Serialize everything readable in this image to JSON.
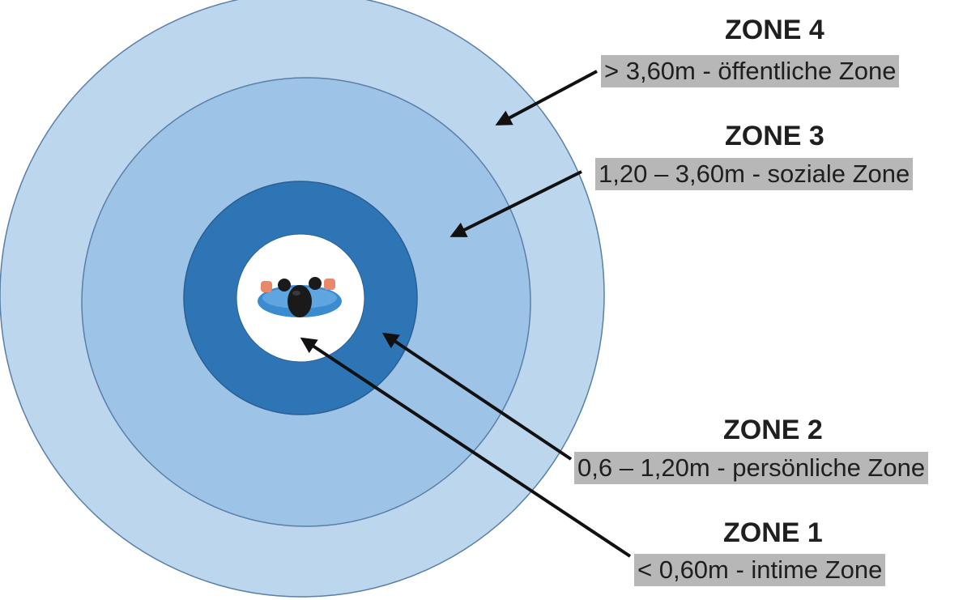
{
  "zones": [
    {
      "title": "ZONE 4",
      "description": "> 3,60m - öffentliche Zone"
    },
    {
      "title": "ZONE 3",
      "description": "1,20 – 3,60m - soziale Zone"
    },
    {
      "title": "ZONE 2",
      "description": "0,6 – 1,20m - persönliche Zone"
    },
    {
      "title": "ZONE 1",
      "description": "< 0,60m - intime Zone"
    }
  ],
  "colors": {
    "zone4_fill": "#bcd6ee",
    "zone3_fill": "#9dc3e6",
    "zone2_fill": "#2e75b6",
    "zone1_fill": "#ffffff",
    "ring_stroke": "#5a7fa8",
    "arrow": "#111111",
    "label_background": "#b7b7b7",
    "person_body": "#3b8bd0",
    "person_head": "#1a1a1a",
    "person_skin": "#e8896c"
  },
  "icons": {
    "center": "person-top-view-icon"
  }
}
